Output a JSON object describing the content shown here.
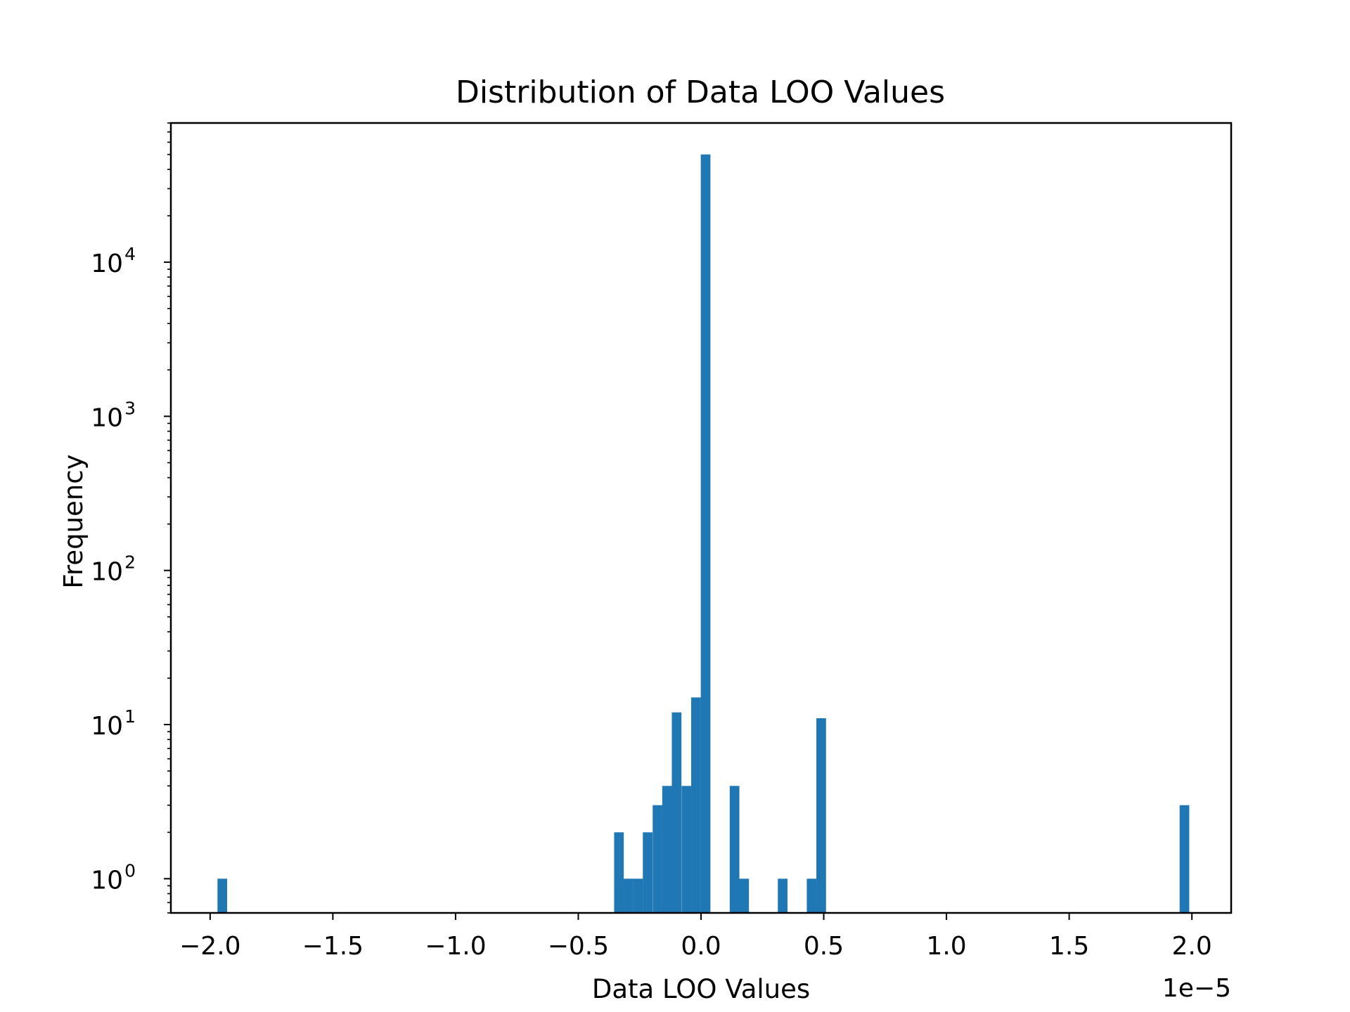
{
  "chart_data": {
    "type": "bar",
    "title": "Distribution of Data LOO Values",
    "xlabel": "Data LOO Values",
    "ylabel": "Frequency",
    "x_offset_text": "1e−5",
    "xlim": [
      -2.16e-05,
      2.16e-05
    ],
    "ylim": [
      0.6,
      80000
    ],
    "yscale": "log",
    "grid": false,
    "legend": "none",
    "bar_color": "#1f77b4",
    "bin_width": 3.93e-07,
    "bins": [
      {
        "x0": -1.97e-05,
        "count": 1
      },
      {
        "x0": -3.54e-06,
        "count": 2
      },
      {
        "x0": -3.15e-06,
        "count": 1
      },
      {
        "x0": -2.76e-06,
        "count": 1
      },
      {
        "x0": -2.37e-06,
        "count": 2
      },
      {
        "x0": -1.97e-06,
        "count": 3
      },
      {
        "x0": -1.58e-06,
        "count": 4
      },
      {
        "x0": -1.19e-06,
        "count": 12
      },
      {
        "x0": -7.9e-07,
        "count": 4
      },
      {
        "x0": -4e-07,
        "count": 15
      },
      {
        "x0": -1e-08,
        "count": 50000
      },
      {
        "x0": 1.17e-06,
        "count": 4
      },
      {
        "x0": 1.56e-06,
        "count": 1
      },
      {
        "x0": 3.13e-06,
        "count": 1
      },
      {
        "x0": 4.31e-06,
        "count": 1
      },
      {
        "x0": 4.7e-06,
        "count": 11
      },
      {
        "x0": 1.95e-05,
        "count": 3
      }
    ],
    "xticks": [
      {
        "value": -2e-05,
        "label": "−2.0"
      },
      {
        "value": -1.5e-05,
        "label": "−1.5"
      },
      {
        "value": -1e-05,
        "label": "−1.0"
      },
      {
        "value": -5e-06,
        "label": "−0.5"
      },
      {
        "value": 0,
        "label": "0.0"
      },
      {
        "value": 5e-06,
        "label": "0.5"
      },
      {
        "value": 1e-05,
        "label": "1.0"
      },
      {
        "value": 1.5e-05,
        "label": "1.5"
      },
      {
        "value": 2e-05,
        "label": "2.0"
      }
    ],
    "yticks": [
      {
        "exp": 0,
        "base": "10",
        "sup": "0"
      },
      {
        "exp": 1,
        "base": "10",
        "sup": "1"
      },
      {
        "exp": 2,
        "base": "10",
        "sup": "2"
      },
      {
        "exp": 3,
        "base": "10",
        "sup": "3"
      },
      {
        "exp": 4,
        "base": "10",
        "sup": "4"
      }
    ]
  }
}
